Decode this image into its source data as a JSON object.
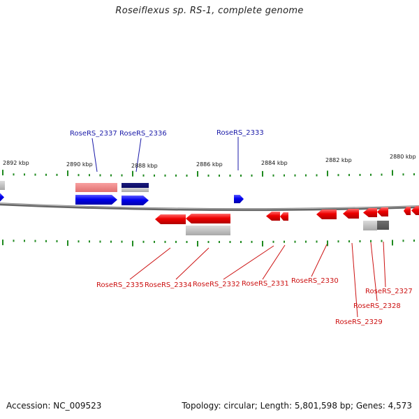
{
  "title": "Roseiflexus sp. RS-1, complete genome",
  "footer": {
    "accession": "Accession: NC_009523",
    "topology": "Topology: circular; Length: 5,801,598 bp; Genes: 4,573"
  },
  "colors": {
    "forward_gene": "#0000ee",
    "reverse_gene": "#ee0000",
    "forward_label": "#1a1aa8",
    "reverse_label": "#cc1111",
    "tick": "#1f8a1f",
    "backbone": "#888888"
  },
  "scale_labels": [
    "2892 kbp",
    "2890 kbp",
    "2888 kbp",
    "2886 kbp",
    "2884 kbp",
    "2882 kbp",
    "2880 kbp"
  ],
  "forward_genes": [
    {
      "name": "RoseRS_2337",
      "has_label": true
    },
    {
      "name": "RoseRS_2336",
      "has_label": true
    },
    {
      "name": "RoseRS_2333",
      "has_label": true
    }
  ],
  "reverse_genes": [
    {
      "name": "RoseRS_2335"
    },
    {
      "name": "RoseRS_2334"
    },
    {
      "name": "RoseRS_2332"
    },
    {
      "name": "RoseRS_2331"
    },
    {
      "name": "RoseRS_2330"
    },
    {
      "name": "RoseRS_2327"
    },
    {
      "name": "RoseRS_2328"
    },
    {
      "name": "RoseRS_2329"
    }
  ]
}
